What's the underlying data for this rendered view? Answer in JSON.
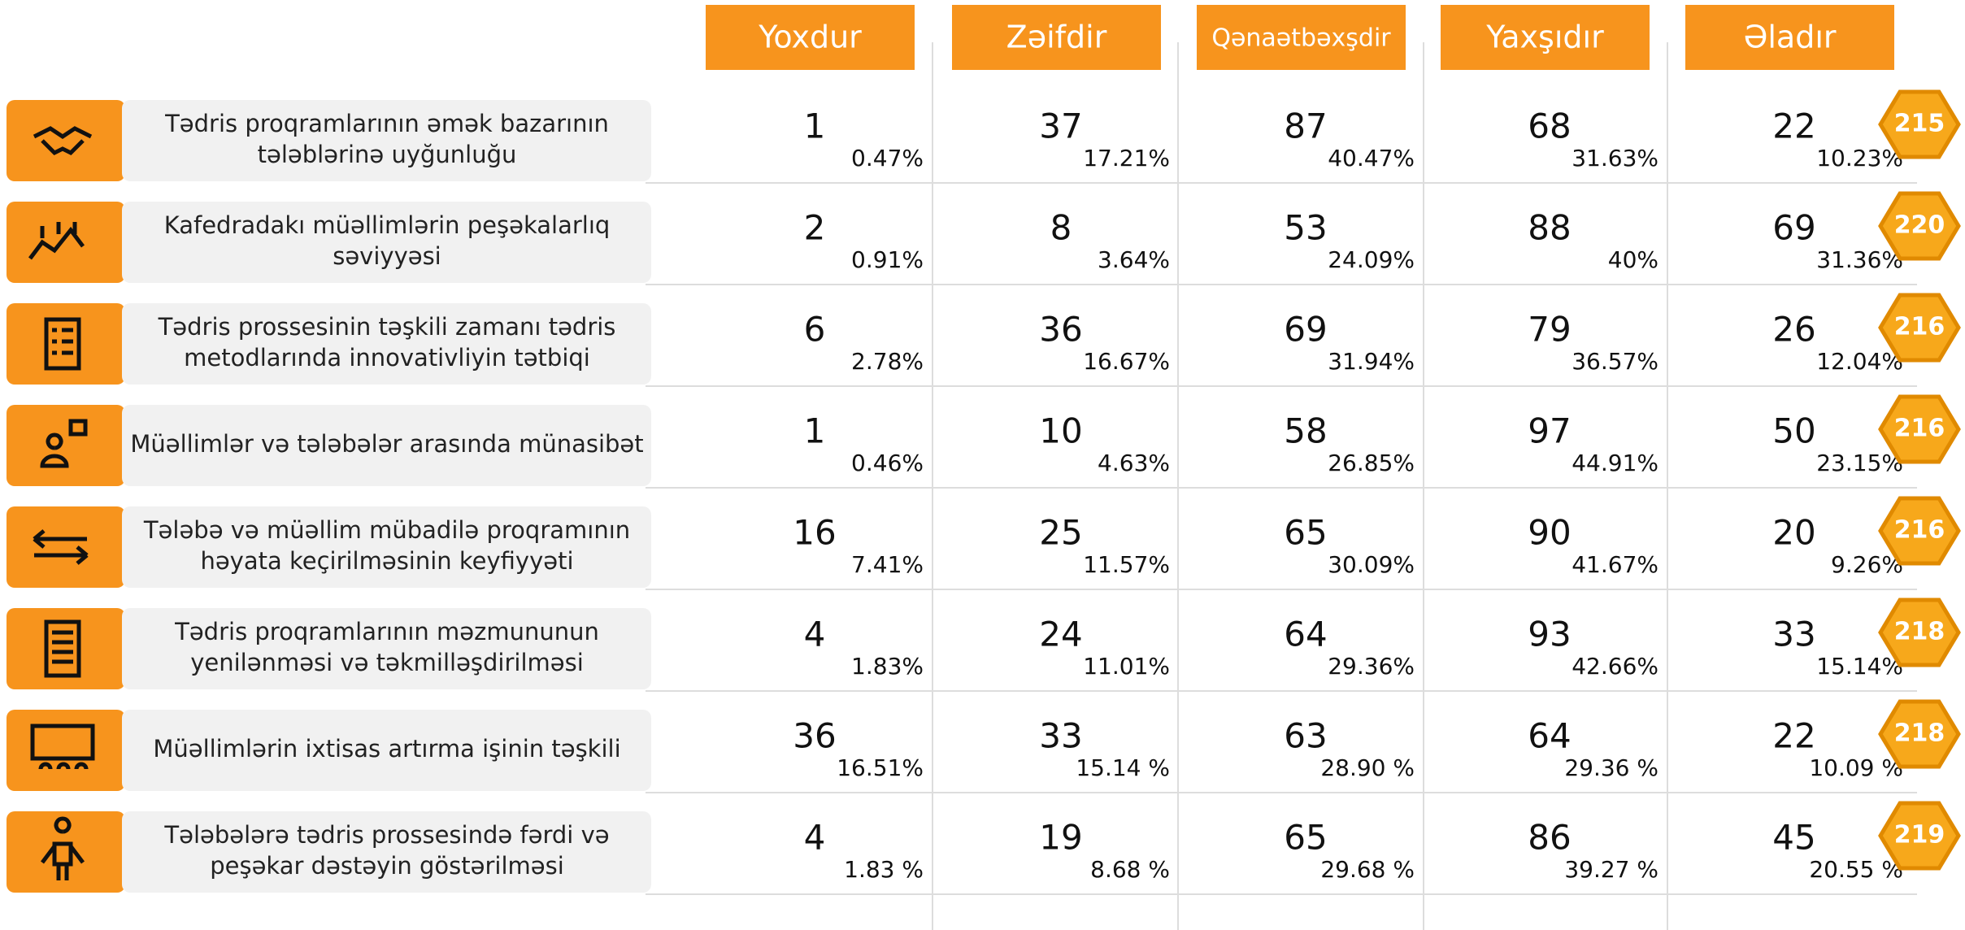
{
  "header": {
    "columns": [
      "Yoxdur",
      "Zəifdir",
      "Qənaətbəxşdir",
      "Yaxşıdır",
      "Əladır"
    ]
  },
  "rows": [
    {
      "label": [
        "Tədris proqramlarının əmək bazarının",
        "tələblərinə uyğunluğu"
      ],
      "counts": [
        "1",
        "37",
        "87",
        "68",
        "22"
      ],
      "percents": [
        "0.47%",
        "17.21%",
        "40.47%",
        "31.63%",
        "10.23%"
      ],
      "total": "215"
    },
    {
      "label": [
        "Kafedradakı müəllimlərin peşəkalarlıq",
        "səviyyəsi"
      ],
      "counts": [
        "2",
        "8",
        "53",
        "88",
        "69"
      ],
      "percents": [
        "0.91%",
        "3.64%",
        "24.09%",
        "40%",
        "31.36%"
      ],
      "total": "220"
    },
    {
      "label": [
        "Tədris prossesinin təşkili zamanı tədris",
        "metodlarında innovativliyin tətbiqi"
      ],
      "counts": [
        "6",
        "36",
        "69",
        "79",
        "26"
      ],
      "percents": [
        "2.78%",
        "16.67%",
        "31.94%",
        "36.57%",
        "12.04%"
      ],
      "total": "216"
    },
    {
      "label": [
        "Müəllimlər və tələbələr arasında münasibət"
      ],
      "counts": [
        "1",
        "10",
        "58",
        "97",
        "50"
      ],
      "percents": [
        "0.46%",
        "4.63%",
        "26.85%",
        "44.91%",
        "23.15%"
      ],
      "total": "216"
    },
    {
      "label": [
        "Tələbə və müəllim mübadilə proqramının",
        "həyata keçirilməsinin keyfiyyəti"
      ],
      "counts": [
        "16",
        "25",
        "65",
        "90",
        "20"
      ],
      "percents": [
        "7.41%",
        "11.57%",
        "30.09%",
        "41.67%",
        "9.26%"
      ],
      "total": "216"
    },
    {
      "label": [
        "Tədris proqramlarının məzmununun",
        "yenilənməsi və təkmilləşdirilməsi"
      ],
      "counts": [
        "4",
        "24",
        "64",
        "93",
        "33"
      ],
      "percents": [
        "1.83%",
        "11.01%",
        "29.36%",
        "42.66%",
        "15.14%"
      ],
      "total": "218"
    },
    {
      "label": [
        "Müəllimlərin ixtisas artırma işinin təşkili"
      ],
      "counts": [
        "36",
        "33",
        "63",
        "64",
        "22"
      ],
      "percents": [
        "16.51%",
        "15.14 %",
        "28.90 %",
        "29.36 %",
        "10.09 %"
      ],
      "total": "218"
    },
    {
      "label": [
        "Tələbələrə tədris prossesində fərdi və",
        "peşəkar dəstəyin göstərilməsi"
      ],
      "counts": [
        "4",
        "19",
        "65",
        "86",
        "45"
      ],
      "percents": [
        "1.83 %",
        "8.68 %",
        "29.68 %",
        "39.27 %",
        "20.55 %"
      ],
      "total": "219"
    }
  ]
}
